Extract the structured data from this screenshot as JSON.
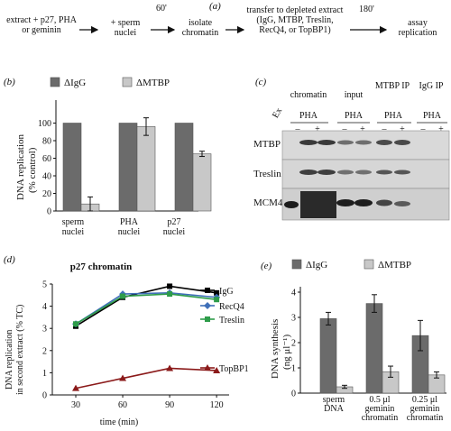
{
  "panel_a": {
    "letter": "(a)",
    "steps": [
      "extract + p27, PHA or geminin",
      "+ sperm nuclei",
      "isolate chromatin",
      "transfer to depleted extract (IgG, MTBP, Treslin, RecQ4, or TopBP1)",
      "assay replication"
    ],
    "times": [
      "60'",
      "180'"
    ]
  },
  "chart_data": [
    {
      "panel": "(b)",
      "type": "bar",
      "categories": [
        "sperm nuclei",
        "PHA nuclei",
        "p27 nuclei"
      ],
      "series": [
        {
          "name": "ΔIgG",
          "values": [
            100,
            100,
            100
          ],
          "errors": [
            0,
            0,
            0
          ]
        },
        {
          "name": "ΔMTBP",
          "values": [
            8,
            96,
            65
          ],
          "errors": [
            8,
            10,
            3
          ]
        }
      ],
      "ylabel": "DNA replication (% control)",
      "ylim": [
        0,
        120
      ],
      "yticks": [
        0,
        20,
        40,
        60,
        80,
        100
      ],
      "colors": [
        "#6b6b6b",
        "#c8c8c8"
      ],
      "legend_position": "top"
    },
    {
      "panel": "(d)",
      "type": "line",
      "title": "p27 chromatin",
      "x": [
        30,
        60,
        90,
        120
      ],
      "series": [
        {
          "name": "IgG",
          "values": [
            3.1,
            4.4,
            4.9,
            4.6
          ],
          "color": "#000000",
          "marker": "square"
        },
        {
          "name": "RecQ4",
          "values": [
            3.2,
            4.55,
            4.6,
            4.4
          ],
          "color": "#3f6fb8",
          "marker": "diamond"
        },
        {
          "name": "Treslin",
          "values": [
            3.2,
            4.45,
            4.55,
            4.3
          ],
          "color": "#2e9c4a",
          "marker": "square"
        },
        {
          "name": "TopBP1",
          "values": [
            0.3,
            0.75,
            1.2,
            1.1
          ],
          "color": "#8b1a1a",
          "marker": "triangle"
        }
      ],
      "xlabel": "time (min)",
      "ylabel": "DNA replication in second extract (% TC)",
      "ylim": [
        0,
        5
      ],
      "yticks": [
        0,
        1,
        2,
        3,
        4,
        5
      ],
      "xticks": [
        30,
        60,
        90,
        120
      ]
    },
    {
      "panel": "(e)",
      "type": "bar",
      "categories": [
        "sperm DNA",
        "0.5 μl geminin chromatin",
        "0.25 μl geminin chromatin"
      ],
      "series": [
        {
          "name": "ΔIgG",
          "values": [
            2.95,
            3.55,
            2.28
          ],
          "errors": [
            0.25,
            0.35,
            0.6
          ]
        },
        {
          "name": "ΔMTBP",
          "values": [
            0.25,
            0.85,
            0.72
          ],
          "errors": [
            0.06,
            0.22,
            0.12
          ]
        }
      ],
      "ylabel": "DNA synthesis (ng μl⁻¹)",
      "ylim": [
        0,
        4
      ],
      "yticks": [
        0,
        1,
        2,
        3,
        4
      ],
      "colors": [
        "#6b6b6b",
        "#c8c8c8"
      ],
      "legend_position": "top"
    }
  ],
  "panel_c": {
    "letter": "(c)",
    "lane_marker": "Ex",
    "groups": [
      "chromatin",
      "input",
      "MTBP IP",
      "IgG IP"
    ],
    "pha_label": "PHA",
    "signs": [
      "–",
      "+",
      "–",
      "+",
      "–",
      "+",
      "–",
      "+"
    ],
    "rows": [
      "MTBP",
      "Treslin",
      "MCM4"
    ]
  },
  "labels": {
    "b_cats": [
      "sperm",
      "nuclei",
      "PHA",
      "nuclei",
      "p27",
      "nuclei"
    ],
    "b_y1": "DNA replication",
    "b_y2": "(% control)",
    "d_y1": "DNA replication",
    "d_y2": "in second extract (% TC)",
    "e_cats": [
      "sperm",
      "DNA",
      "0.5 μl",
      "geminin",
      "chromatin",
      "0.25 μl",
      "geminin",
      "chromatin"
    ],
    "e_y1": "DNA synthesis",
    "e_y2": "(ng μl⁻¹)"
  }
}
